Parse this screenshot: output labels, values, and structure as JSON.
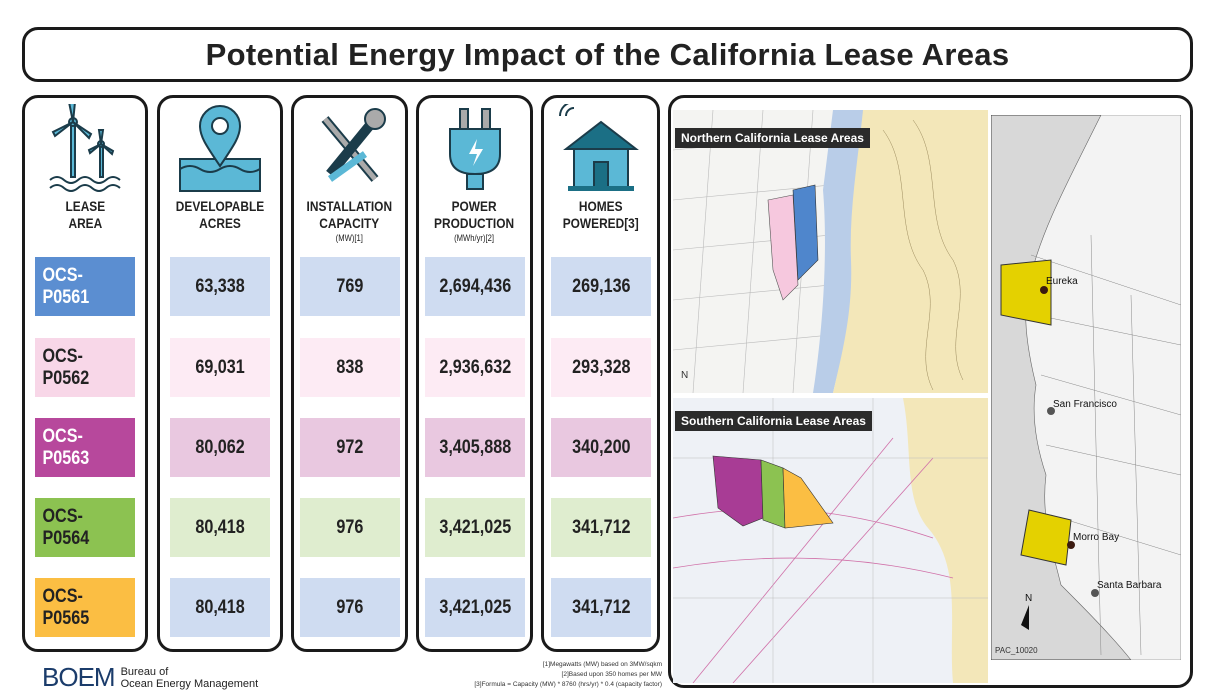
{
  "title": "Potential Energy Impact of the California Lease Areas",
  "columns": [
    {
      "label1": "LEASE",
      "label2": "AREA",
      "sub": "",
      "icon": "wind-turbine-icon"
    },
    {
      "label1": "DEVELOPABLE",
      "label2": "ACRES",
      "sub": "",
      "icon": "location-water-icon"
    },
    {
      "label1": "INSTALLATION",
      "label2": "CAPACITY",
      "sub": "(MW)[1]",
      "icon": "tools-icon"
    },
    {
      "label1": "POWER",
      "label2": "PRODUCTION",
      "sub": "(MWh/yr)[2]",
      "icon": "plug-icon"
    },
    {
      "label1": "HOMES",
      "label2": "POWERED[3]",
      "sub": "",
      "icon": "smart-home-icon"
    }
  ],
  "rows": [
    {
      "lease": "OCS-P0561",
      "acres": "63,338",
      "capacity": "769",
      "production": "2,694,436",
      "homes": "269,136",
      "lease_color": "#5b8ed1",
      "cell_color": "#cfdcf1",
      "text_color": "#ffffff"
    },
    {
      "lease": "OCS-P0562",
      "acres": "69,031",
      "capacity": "838",
      "production": "2,936,632",
      "homes": "293,328",
      "lease_color": "#f8d7e8",
      "cell_color": "#fdebf4",
      "text_color": "#222222"
    },
    {
      "lease": "OCS-P0563",
      "acres": "80,062",
      "capacity": "972",
      "production": "3,405,888",
      "homes": "340,200",
      "lease_color": "#b7489c",
      "cell_color": "#e9c8e0",
      "text_color": "#ffffff"
    },
    {
      "lease": "OCS-P0564",
      "acres": "80,418",
      "capacity": "976",
      "production": "3,421,025",
      "homes": "341,712",
      "lease_color": "#8cc251",
      "cell_color": "#dfedcf",
      "text_color": "#222222"
    },
    {
      "lease": "OCS-P0565",
      "acres": "80,418",
      "capacity": "976",
      "production": "3,421,025",
      "homes": "341,712",
      "lease_color": "#fbbe43",
      "cell_color": "#cfdcf1",
      "text_color": "#222222"
    }
  ],
  "map": {
    "north_label": "Northern California Lease Areas",
    "south_label": "Southern California Lease Areas",
    "cities": [
      "Eureka",
      "San Francisco",
      "Morro Bay",
      "Santa Barbara"
    ],
    "map_id": "PAC_10020",
    "north_arrow": "N"
  },
  "footnotes": [
    "[1]Megawatts (MW) based on 3MW/sqkm",
    "[2]Based upon 350 homes per MW",
    "[3]Formula = Capacity (MW) * 8760 (hrs/yr) * 0.4 (capacity factor)"
  ],
  "logo": {
    "mark": "BOEM",
    "line1": "Bureau of",
    "line2": "Ocean Energy Management"
  }
}
